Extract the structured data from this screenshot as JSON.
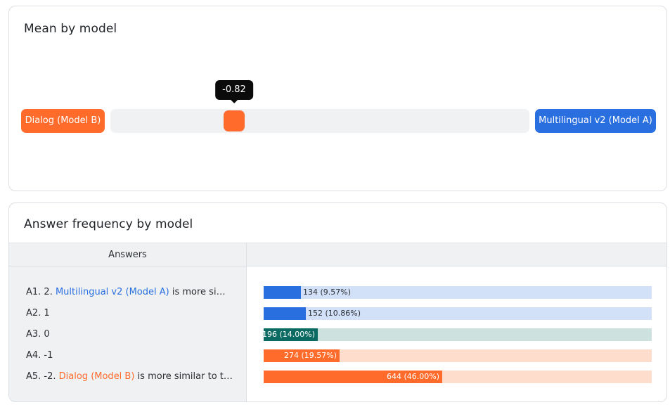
{
  "mean_card": {
    "title": "Mean by model",
    "left_model": "Dialog (Model B)",
    "right_model": "Multilingual v2 (Model A)",
    "value_label": "-0.82",
    "value": -0.82,
    "range": [
      -2,
      2
    ]
  },
  "freq_card": {
    "title": "Answer frequency by model",
    "column_header": "Answers",
    "rows": [
      {
        "prefix": "A1. 2. ",
        "model": "Multilingual v2 (Model A)",
        "suffix": " is more simi...",
        "label": "134 (9.57%)",
        "share": 0.0957,
        "color": "#2a6fe0",
        "bg": "#d3e1f8",
        "label_inside": false
      },
      {
        "prefix": "A2. 1",
        "model": "",
        "suffix": "",
        "label": "152 (10.86%)",
        "share": 0.1086,
        "color": "#2a6fe0",
        "bg": "#d3e1f8",
        "label_inside": false
      },
      {
        "prefix": "A3. 0",
        "model": "",
        "suffix": "",
        "label": "196 (14.00%)",
        "share": 0.14,
        "color": "#0b6b62",
        "bg": "#cde1de",
        "label_inside": true
      },
      {
        "prefix": "A4. -1",
        "model": "",
        "suffix": "",
        "label": "274 (19.57%)",
        "share": 0.1957,
        "color": "#ff6b2b",
        "bg": "#ffddcc",
        "label_inside": true
      },
      {
        "prefix": "A5. -2. ",
        "model": "Dialog (Model B)",
        "suffix": " is more similar to th...",
        "label": "644 (46.00%)",
        "share": 0.46,
        "color": "#ff6b2b",
        "bg": "#ffddcc",
        "label_inside": true
      }
    ]
  }
}
